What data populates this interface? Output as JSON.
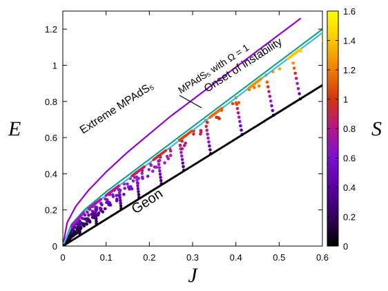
{
  "chart_data": {
    "type": "scatter",
    "xlabel": "J",
    "ylabel": "E",
    "colorbar_label": "S",
    "xlim": [
      0,
      0.6
    ],
    "ylim": [
      0,
      1.3
    ],
    "x_ticks": [
      "0",
      "0.1",
      "0.2",
      "0.3",
      "0.4",
      "0.5",
      "0.6"
    ],
    "x_tick_values": [
      0,
      0.1,
      0.2,
      0.3,
      0.4,
      0.5,
      0.6
    ],
    "y_ticks": [
      "0",
      "0.2",
      "0.4",
      "0.6",
      "0.8",
      "1",
      "1.2"
    ],
    "y_tick_values": [
      0,
      0.2,
      0.4,
      0.6,
      0.8,
      1.0,
      1.2
    ],
    "colorbar_ticks": [
      "0",
      "0.2",
      "0.4",
      "0.6",
      "0.8",
      "1",
      "1.2",
      "1.4",
      "1.6"
    ],
    "colorbar_tick_values": [
      0,
      0.2,
      0.4,
      0.6,
      0.8,
      1.0,
      1.2,
      1.4,
      1.6
    ],
    "colorbar_range": [
      0,
      1.6
    ],
    "colormap": [
      "#000000",
      "#33005e",
      "#6a00b6",
      "#8f1fd9",
      "#b4178a",
      "#d1350f",
      "#ef7d00",
      "#fbc700",
      "#ffff00"
    ],
    "grid": false,
    "legend": "none",
    "annotations": [
      {
        "text": "Extreme MPAdS₅"
      },
      {
        "text": "MPAdS₅ with  Ω = 1"
      },
      {
        "text": "Onset of instability"
      },
      {
        "text": "Geon"
      }
    ],
    "series": [
      {
        "type": "line",
        "color": "#8f00d0",
        "x": [
          0,
          0.01,
          0.03,
          0.06,
          0.1,
          0.15,
          0.2,
          0.25,
          0.3,
          0.35,
          0.4,
          0.45,
          0.5,
          0.55
        ],
        "y": [
          0,
          0.13,
          0.22,
          0.31,
          0.41,
          0.52,
          0.62,
          0.72,
          0.81,
          0.9,
          0.99,
          1.08,
          1.17,
          1.26
        ]
      },
      {
        "type": "line",
        "color": "#14a090",
        "x": [
          0,
          0.02,
          0.05,
          0.1,
          0.15,
          0.2,
          0.25,
          0.3,
          0.35,
          0.4,
          0.45,
          0.5,
          0.55,
          0.6
        ],
        "y": [
          0,
          0.12,
          0.2,
          0.3,
          0.39,
          0.48,
          0.57,
          0.66,
          0.75,
          0.84,
          0.93,
          1.02,
          1.11,
          1.2
        ]
      },
      {
        "type": "line",
        "color": "#3cb8d8",
        "x": [
          0,
          0.02,
          0.05,
          0.1,
          0.15,
          0.2,
          0.25,
          0.3,
          0.35,
          0.4,
          0.45,
          0.5,
          0.55,
          0.6
        ],
        "y": [
          0,
          0.11,
          0.19,
          0.28,
          0.37,
          0.46,
          0.55,
          0.64,
          0.73,
          0.82,
          0.91,
          1.0,
          1.09,
          1.18
        ]
      },
      {
        "type": "line",
        "color": "#000000",
        "x": [
          0,
          0.6
        ],
        "y": [
          0,
          0.89
        ]
      },
      {
        "type": "scatter",
        "color_by": "S",
        "families_J_end": [
          0.038,
          0.075,
          0.13,
          0.17,
          0.22,
          0.27,
          0.33,
          0.4,
          0.47,
          0.53,
          0.6
        ],
        "families_S_end": [
          0.55,
          0.65,
          0.72,
          0.78,
          0.86,
          0.95,
          1.05,
          1.15,
          1.25,
          1.4,
          1.55
        ]
      }
    ]
  }
}
